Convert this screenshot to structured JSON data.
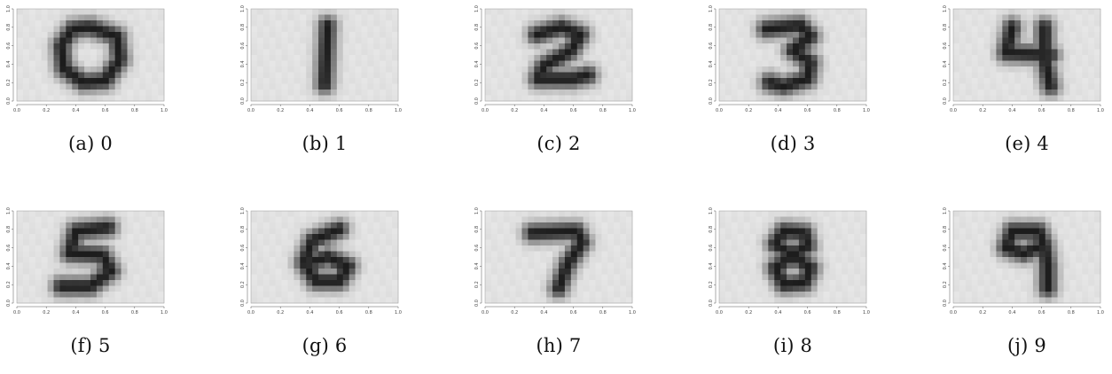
{
  "figure": {
    "axis_ticks": [
      "0.0",
      "0.2",
      "0.4",
      "0.6",
      "0.8",
      "1.0"
    ],
    "panels": [
      {
        "label": "(a) 0",
        "digit": 0
      },
      {
        "label": "(b) 1",
        "digit": 1
      },
      {
        "label": "(c) 2",
        "digit": 2
      },
      {
        "label": "(d) 3",
        "digit": 3
      },
      {
        "label": "(e) 4",
        "digit": 4
      },
      {
        "label": "(f) 5",
        "digit": 5
      },
      {
        "label": "(g) 6",
        "digit": 6
      },
      {
        "label": "(h) 7",
        "digit": 7
      },
      {
        "label": "(i) 8",
        "digit": 8
      },
      {
        "label": "(j) 9",
        "digit": 9
      }
    ]
  }
}
